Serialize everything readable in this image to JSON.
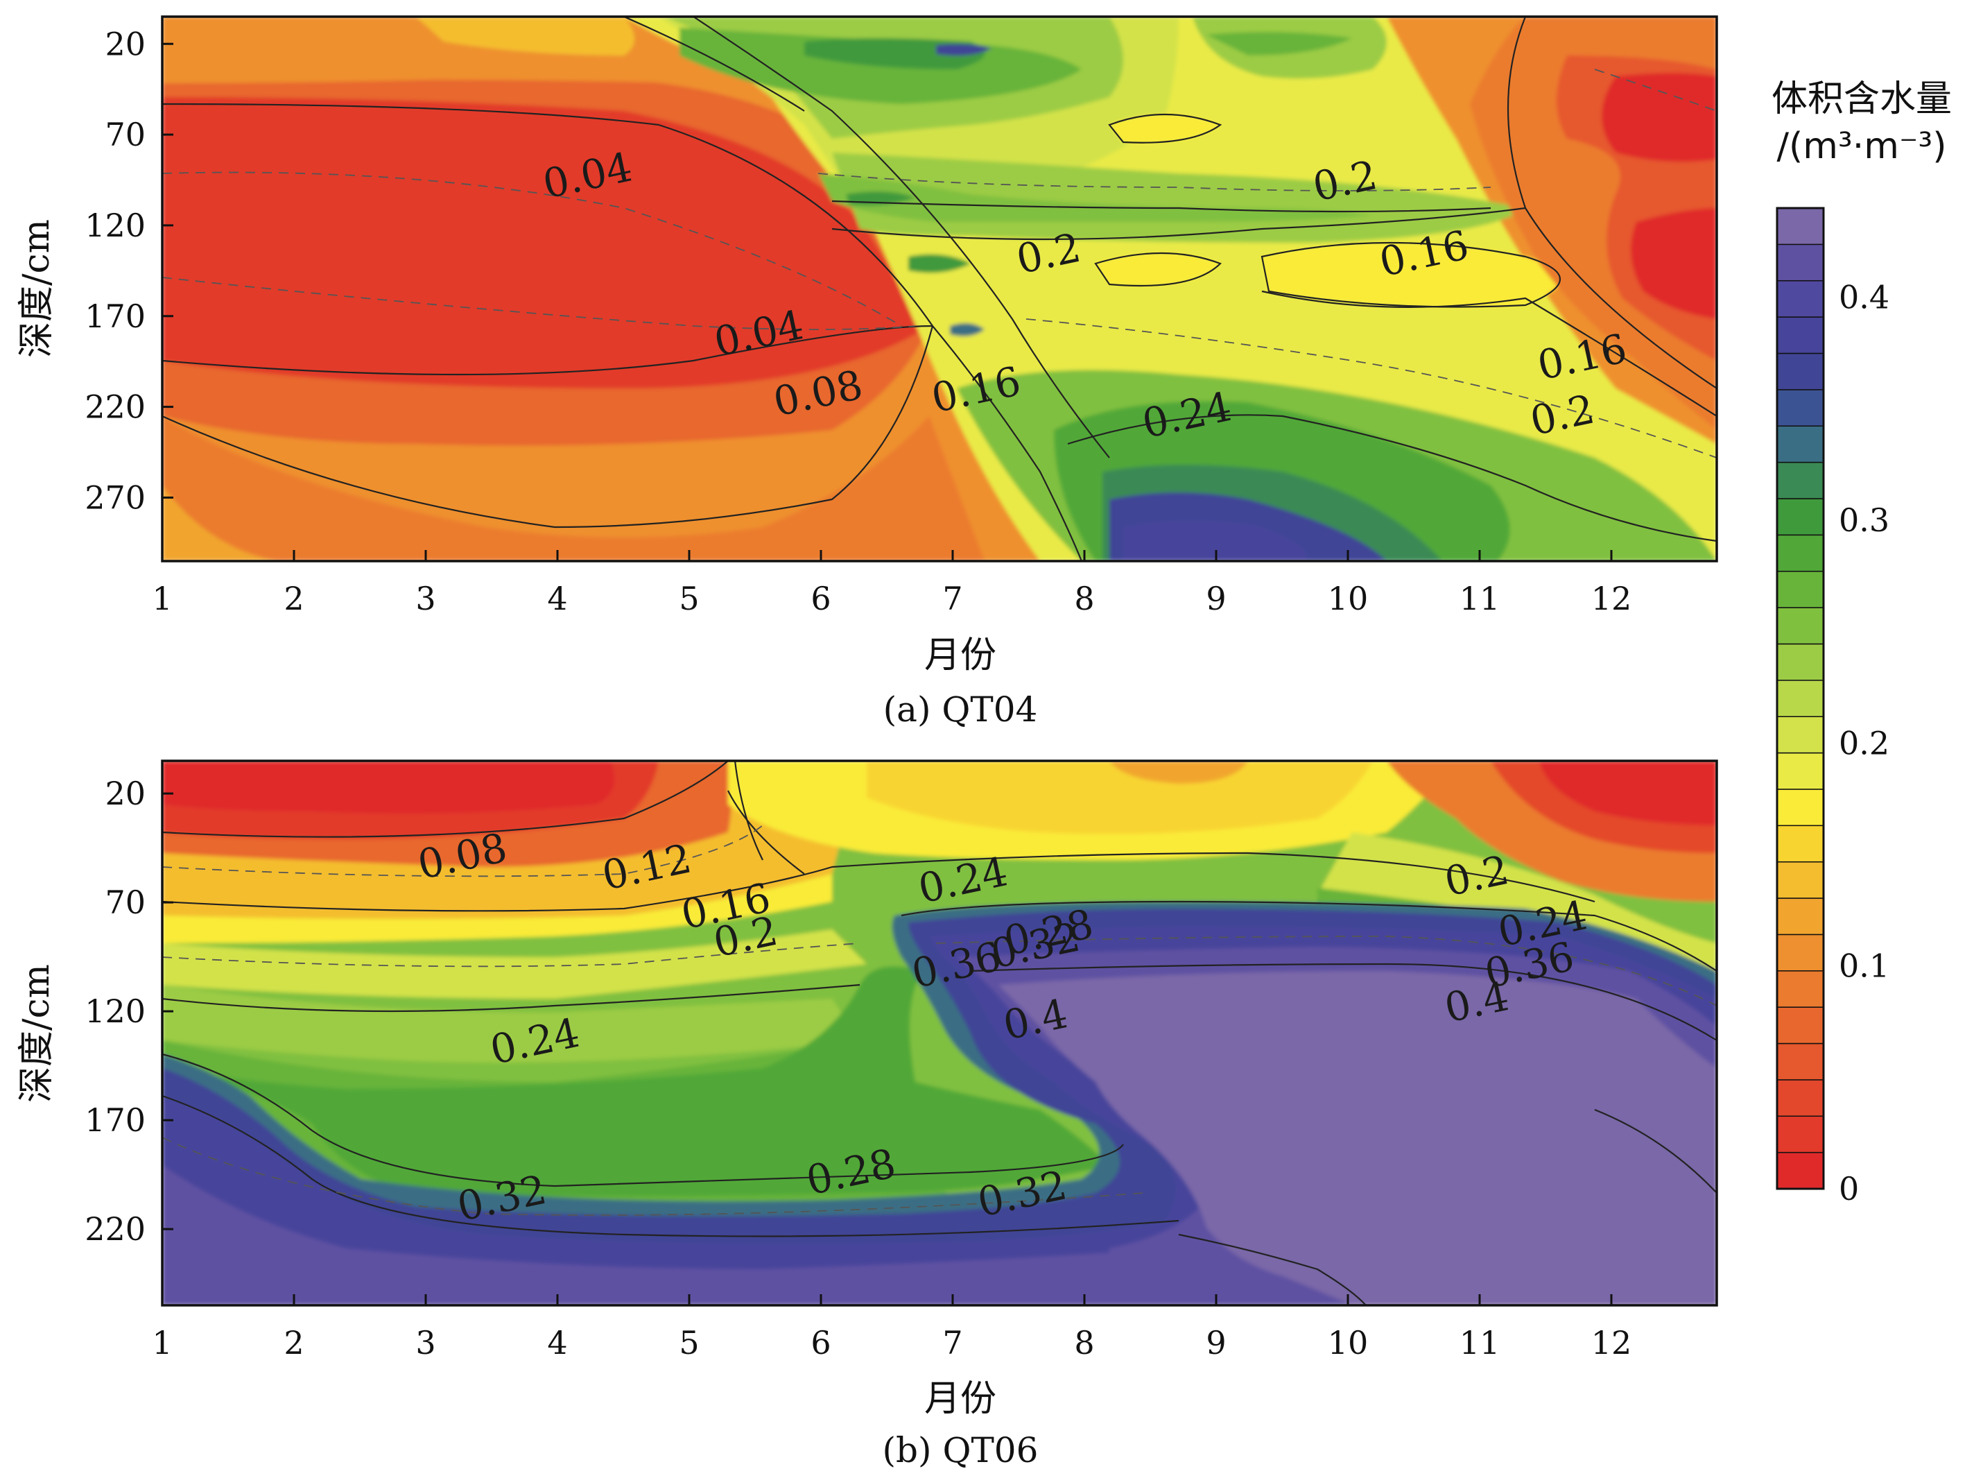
{
  "chart_data": {
    "colorbar": {
      "title": "体积含水量",
      "unit": "/(m³·m⁻³)",
      "ticks": [
        "0",
        "0.1",
        "0.2",
        "0.3",
        "0.4"
      ],
      "tick_values": [
        0,
        0.1,
        0.2,
        0.3,
        0.4
      ],
      "range": [
        0,
        0.44
      ],
      "step": 0.02,
      "colors": [
        "#e02a2a",
        "#e23a2b",
        "#e4482c",
        "#e6582d",
        "#e8672e",
        "#eb7b2e",
        "#ee902f",
        "#f1a52f",
        "#f4bd2f",
        "#f8d430",
        "#faeb38",
        "#e9ea46",
        "#d3e24a",
        "#b8d84a",
        "#9ccc45",
        "#80c03f",
        "#68b43b",
        "#51a838",
        "#3f9a3c",
        "#3a8a55",
        "#3a6e84",
        "#3c5393",
        "#404596",
        "#47449b",
        "#5049a0",
        "#5e51a2",
        "#7a68a8"
      ]
    },
    "panels": [
      {
        "type": "heatmap",
        "caption": "(a) QT04",
        "xlabel": "月份",
        "ylabel": "深度/cm",
        "x_ticks": [
          "1",
          "2",
          "3",
          "4",
          "5",
          "6",
          "7",
          "8",
          "9",
          "10",
          "11",
          "12"
        ],
        "y_ticks": [
          "20",
          "70",
          "120",
          "170",
          "220",
          "270"
        ],
        "xlim": [
          1,
          12.8
        ],
        "ylim": [
          5,
          305
        ],
        "y_inverted": true,
        "contour_labels": [
          {
            "text": "0.04",
            "x": 4.25,
            "y": 100
          },
          {
            "text": "0.04",
            "x": 5.55,
            "y": 187
          },
          {
            "text": "0.08",
            "x": 6.0,
            "y": 220
          },
          {
            "text": "0.16",
            "x": 7.2,
            "y": 218
          },
          {
            "text": "0.2",
            "x": 7.75,
            "y": 143
          },
          {
            "text": "0.2",
            "x": 10.0,
            "y": 103
          },
          {
            "text": "0.16",
            "x": 10.6,
            "y": 143
          },
          {
            "text": "0.24",
            "x": 8.8,
            "y": 232
          },
          {
            "text": "0.16",
            "x": 11.8,
            "y": 200
          },
          {
            "text": "0.2",
            "x": 11.65,
            "y": 232
          }
        ]
      },
      {
        "type": "heatmap",
        "caption": "(b) QT06",
        "xlabel": "月份",
        "ylabel": "深度/cm",
        "x_ticks": [
          "1",
          "2",
          "3",
          "4",
          "5",
          "6",
          "7",
          "8",
          "9",
          "10",
          "11",
          "12"
        ],
        "y_ticks": [
          "20",
          "70",
          "120",
          "170",
          "220"
        ],
        "xlim": [
          1,
          12.8
        ],
        "ylim": [
          5,
          255
        ],
        "y_inverted": true,
        "contour_labels": [
          {
            "text": "0.08",
            "x": 3.3,
            "y": 55
          },
          {
            "text": "0.12",
            "x": 4.7,
            "y": 60
          },
          {
            "text": "0.16",
            "x": 5.3,
            "y": 78
          },
          {
            "text": "0.2",
            "x": 5.45,
            "y": 92
          },
          {
            "text": "0.24",
            "x": 7.1,
            "y": 66
          },
          {
            "text": "0.28",
            "x": 7.75,
            "y": 90
          },
          {
            "text": "0.32",
            "x": 7.65,
            "y": 96
          },
          {
            "text": "0.36",
            "x": 7.05,
            "y": 105
          },
          {
            "text": "0.24",
            "x": 3.85,
            "y": 140
          },
          {
            "text": "0.28",
            "x": 6.25,
            "y": 200
          },
          {
            "text": "0.32",
            "x": 3.6,
            "y": 212
          },
          {
            "text": "0.32",
            "x": 7.55,
            "y": 210
          },
          {
            "text": "0.4",
            "x": 7.65,
            "y": 130
          },
          {
            "text": "0.2",
            "x": 11.0,
            "y": 64
          },
          {
            "text": "0.24",
            "x": 11.5,
            "y": 86
          },
          {
            "text": "0.36",
            "x": 11.4,
            "y": 105
          },
          {
            "text": "0.4",
            "x": 11.0,
            "y": 122
          }
        ]
      }
    ]
  }
}
